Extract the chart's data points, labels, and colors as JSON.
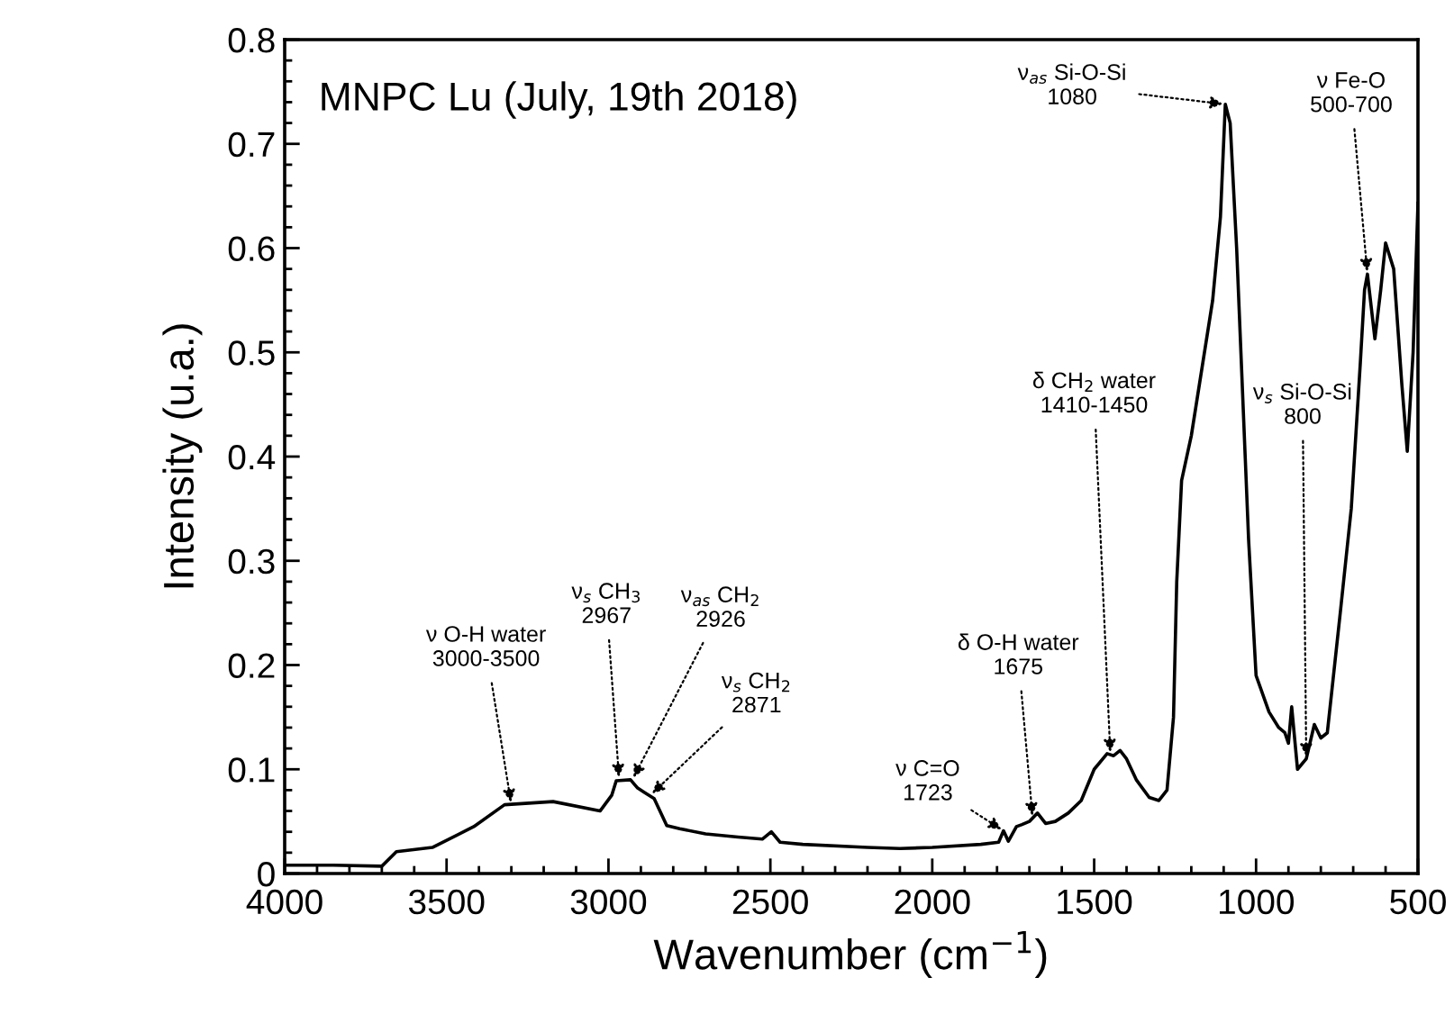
{
  "chart_data": {
    "type": "line",
    "title": "MNPC Lu (July, 19th 2018)",
    "xlabel": "Wavenumber (cm$^{−1}$)",
    "ylabel": "Intensity (u.a.)",
    "xlim": [
      4000,
      500
    ],
    "xticks": [
      4000,
      3500,
      3000,
      2500,
      2000,
      1500,
      1000,
      500
    ],
    "ylim": [
      0,
      0.8
    ],
    "yticks": [
      0,
      0.1,
      0.2,
      0.3,
      0.4,
      0.5,
      0.6,
      0.7,
      0.8
    ],
    "series": [
      {
        "color": "#000000",
        "x": [
          4000,
          3850,
          3700,
          3655,
          3544,
          3416,
          3321,
          3171,
          3026,
          2990,
          2976,
          2932,
          2910,
          2890,
          2859,
          2820,
          2780,
          2700,
          2600,
          2525,
          2497,
          2470,
          2400,
          2200,
          2100,
          2000,
          1850,
          1795,
          1780,
          1765,
          1740,
          1723,
          1700,
          1675,
          1650,
          1620,
          1580,
          1540,
          1500,
          1460,
          1440,
          1420,
          1400,
          1370,
          1330,
          1300,
          1275,
          1255,
          1245,
          1230,
          1200,
          1134,
          1110,
          1095,
          1080,
          1060,
          1023,
          1000,
          960,
          930,
          911,
          900,
          890,
          872,
          845,
          820,
          800,
          780,
          740,
          706,
          678,
          665,
          656,
          633,
          615,
          600,
          575,
          550,
          533,
          515,
          500
        ],
        "values": [
          0.008,
          0.008,
          0.007,
          0.021,
          0.025,
          0.045,
          0.066,
          0.069,
          0.06,
          0.075,
          0.089,
          0.09,
          0.082,
          0.078,
          0.072,
          0.046,
          0.043,
          0.038,
          0.035,
          0.033,
          0.04,
          0.03,
          0.028,
          0.025,
          0.024,
          0.025,
          0.028,
          0.03,
          0.041,
          0.031,
          0.045,
          0.047,
          0.05,
          0.058,
          0.048,
          0.05,
          0.058,
          0.07,
          0.1,
          0.115,
          0.113,
          0.118,
          0.11,
          0.09,
          0.073,
          0.07,
          0.08,
          0.15,
          0.28,
          0.377,
          0.42,
          0.55,
          0.63,
          0.738,
          0.72,
          0.6,
          0.32,
          0.19,
          0.155,
          0.14,
          0.135,
          0.125,
          0.16,
          0.1,
          0.11,
          0.143,
          0.13,
          0.135,
          0.25,
          0.35,
          0.49,
          0.56,
          0.575,
          0.513,
          0.56,
          0.605,
          0.58,
          0.47,
          0.405,
          0.5,
          0.643
        ]
      }
    ],
    "annotations": [
      {
        "text": "ν O-H water\n3000-3500",
        "x": 3300,
        "y": 0.066
      },
      {
        "text": "ν$_{s}$ CH$_{3}$\n2967",
        "x": 2967,
        "y": 0.09
      },
      {
        "text": "ν$_{as}$ CH$_{2}$\n2926",
        "x": 2926,
        "y": 0.09
      },
      {
        "text": "ν$_{s}$ CH$_{2}$\n2871",
        "x": 2871,
        "y": 0.075
      },
      {
        "text": "ν C=O\n1723",
        "x": 1780,
        "y": 0.041
      },
      {
        "text": "δ O-H water\n1675",
        "x": 1690,
        "y": 0.053
      },
      {
        "text": "δ CH$_{2}$ water\n1410-1450",
        "x": 1450,
        "y": 0.114
      },
      {
        "text": "ν$_{as}$ Si-O-Si\n1080",
        "x": 1095,
        "y": 0.738
      },
      {
        "text": "ν$_{s}$ Si-O-Si\n800",
        "x": 845,
        "y": 0.11
      },
      {
        "text": "ν Fe-O\n500-700",
        "x": 656,
        "y": 0.575
      }
    ]
  }
}
